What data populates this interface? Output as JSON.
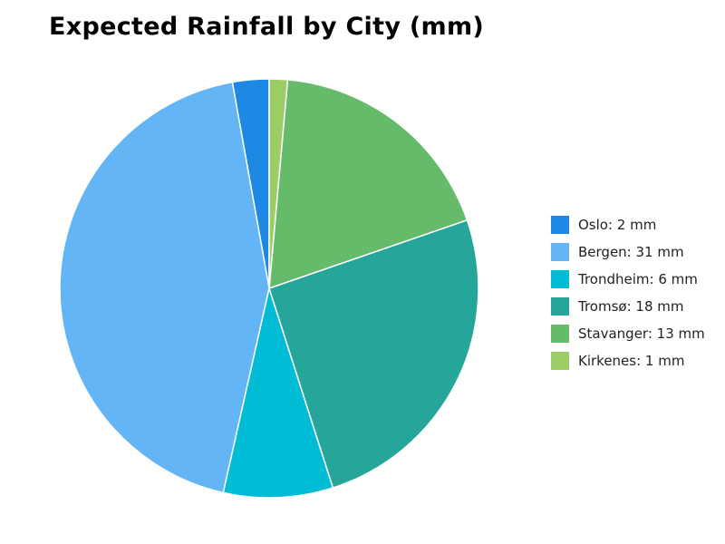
{
  "chart_data": {
    "type": "pie",
    "title": "Expected Rainfall by City (mm)",
    "categories": [
      "Oslo",
      "Bergen",
      "Trondheim",
      "Tromsø",
      "Stavanger",
      "Kirkenes"
    ],
    "values": [
      2,
      31,
      6,
      18,
      13,
      1
    ],
    "unit": "mm",
    "colors": [
      "#1e88e5",
      "#64b5f6",
      "#00bcd4",
      "#26a69a",
      "#66bb6a",
      "#9ccc65"
    ],
    "legend_labels": [
      "Oslo: 2 mm",
      "Bergen: 31 mm",
      "Trondheim: 6 mm",
      "Tromsø: 18 mm",
      "Stavanger: 13 mm",
      "Kirkenes: 1 mm"
    ],
    "legend_position": "right",
    "start_angle": "top",
    "direction": "counterclockwise"
  }
}
